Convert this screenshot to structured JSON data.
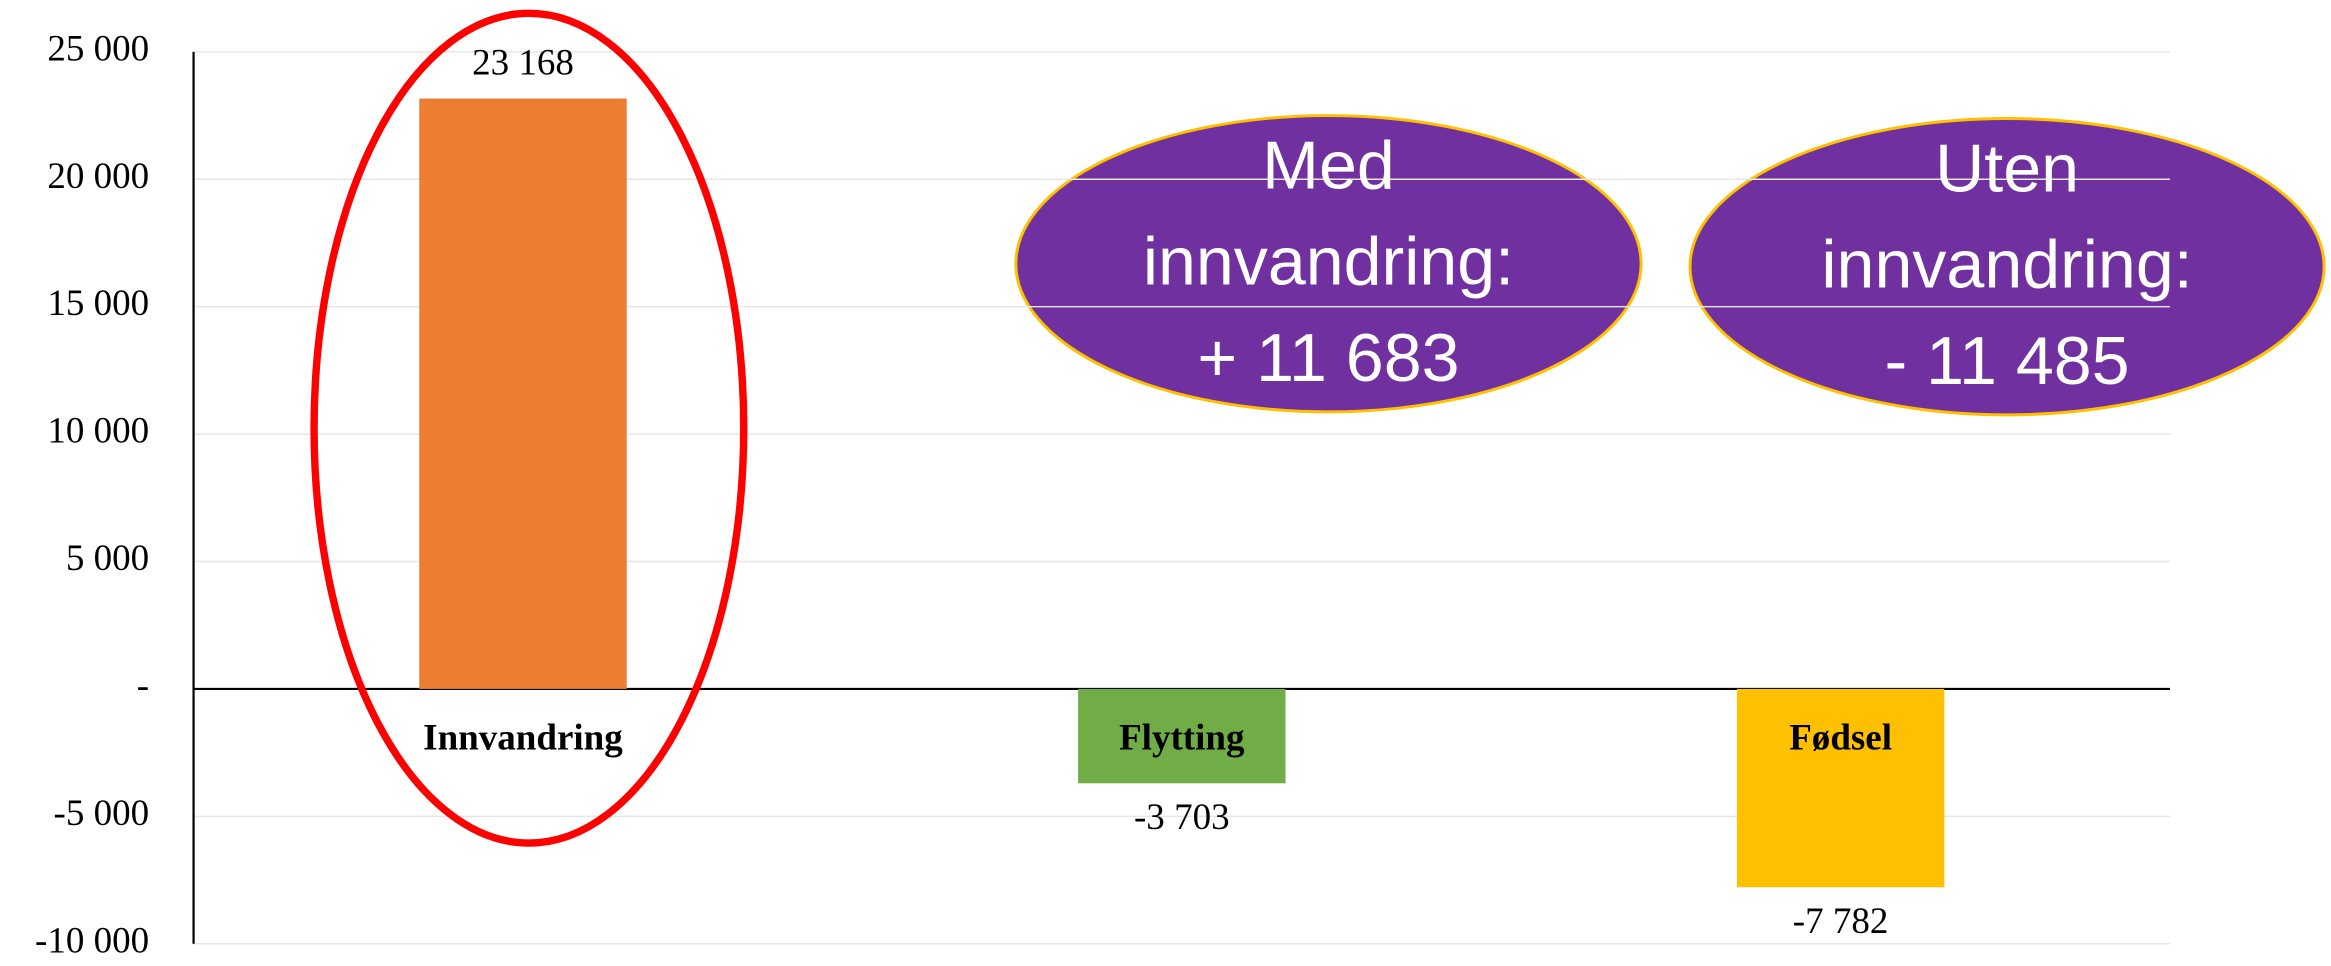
{
  "chart_data": {
    "type": "bar",
    "categories": [
      "Innvandring",
      "Flytting",
      "Fødsel"
    ],
    "values": [
      23168,
      -3703,
      -7782
    ],
    "value_labels": [
      "23 168",
      "-3 703",
      "-7 782"
    ],
    "colors": [
      "#ed7d31",
      "#70ad47",
      "#ffc000"
    ],
    "ylim": [
      -10000,
      25000
    ],
    "yticks": [
      {
        "value": -10000,
        "label": "-10 000"
      },
      {
        "value": -5000,
        "label": "-5 000"
      },
      {
        "value": 0,
        "label": "-"
      },
      {
        "value": 5000,
        "label": "5 000"
      },
      {
        "value": 10000,
        "label": "10 000"
      },
      {
        "value": 15000,
        "label": "15 000"
      },
      {
        "value": 20000,
        "label": "20 000"
      },
      {
        "value": 25000,
        "label": "25 000"
      }
    ],
    "grid": true,
    "annotations": [
      {
        "lines": [
          "Med",
          "innvandring:",
          "+ 11 683"
        ]
      },
      {
        "lines": [
          "Uten",
          "innvandring:",
          "- 11 485"
        ]
      }
    ]
  }
}
